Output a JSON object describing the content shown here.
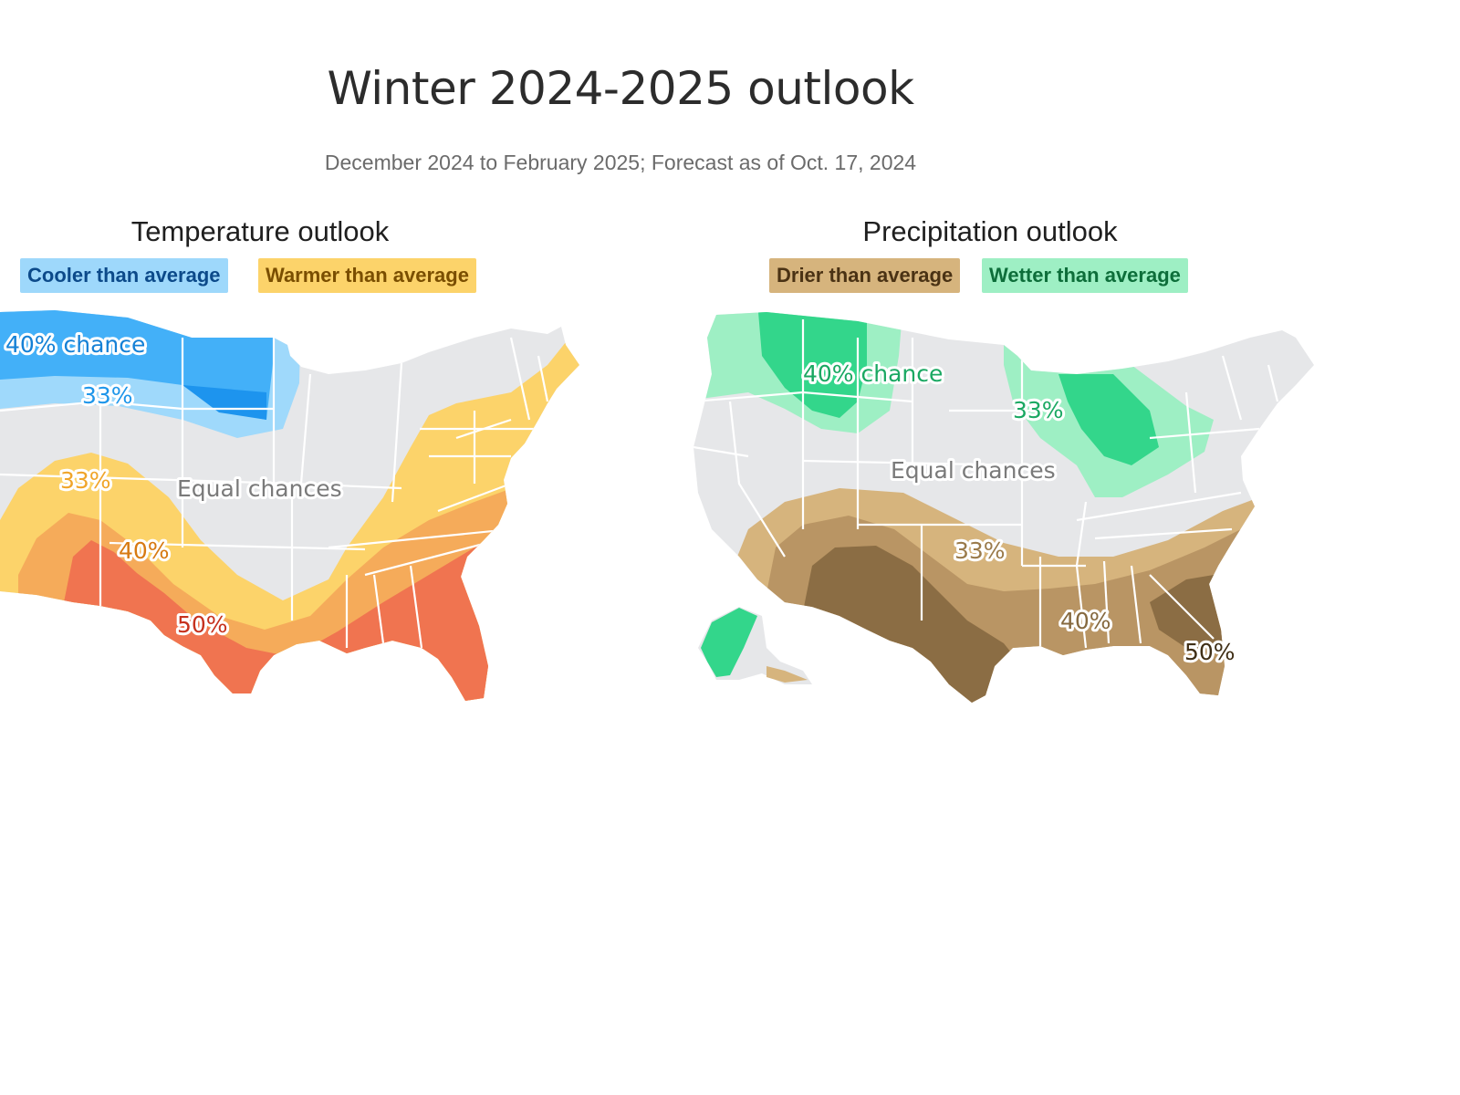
{
  "header": {
    "title": "Winter 2024-2025 outlook",
    "subtitle": "December 2024 to February 2025; Forecast as of Oct. 17, 2024"
  },
  "temperature": {
    "title": "Temperature outlook",
    "legend": [
      {
        "label": "Cooler than average",
        "bg": "#9ed8fb",
        "fg": "#0c4a8a"
      },
      {
        "label": "Warmer than average",
        "bg": "#fcd36a",
        "fg": "#7a4e00"
      }
    ],
    "labels": {
      "cool40": "40% chance",
      "cool33": "33%",
      "warm33": "33%",
      "equal": "Equal chances",
      "warm40": "40%",
      "warm50": "50%"
    },
    "colors": {
      "cool_light": "#9fd9fb",
      "cool_mid": "#43b0f8",
      "cool_dark": "#1d94ee",
      "warm_light": "#fcd36a",
      "warm_mid": "#f5ab5a",
      "warm_dark": "#f07450",
      "equal": "#e6e7e9"
    }
  },
  "precipitation": {
    "title": "Precipitation outlook",
    "legend": [
      {
        "label": "Drier than average",
        "bg": "#d6b47d",
        "fg": "#4a3214"
      },
      {
        "label": "Wetter than average",
        "bg": "#9eefc4",
        "fg": "#0d6e3a"
      }
    ],
    "labels": {
      "wet40": "40% chance",
      "wet33": "33%",
      "equal": "Equal chances",
      "dry33": "33%",
      "dry40": "40%",
      "dry50": "50%"
    },
    "colors": {
      "wet_light": "#9eefc4",
      "wet_dark": "#33d68b",
      "dry_light": "#d6b47d",
      "dry_mid": "#b99564",
      "dry_dark": "#8b6d44",
      "equal": "#e6e7e9"
    }
  }
}
